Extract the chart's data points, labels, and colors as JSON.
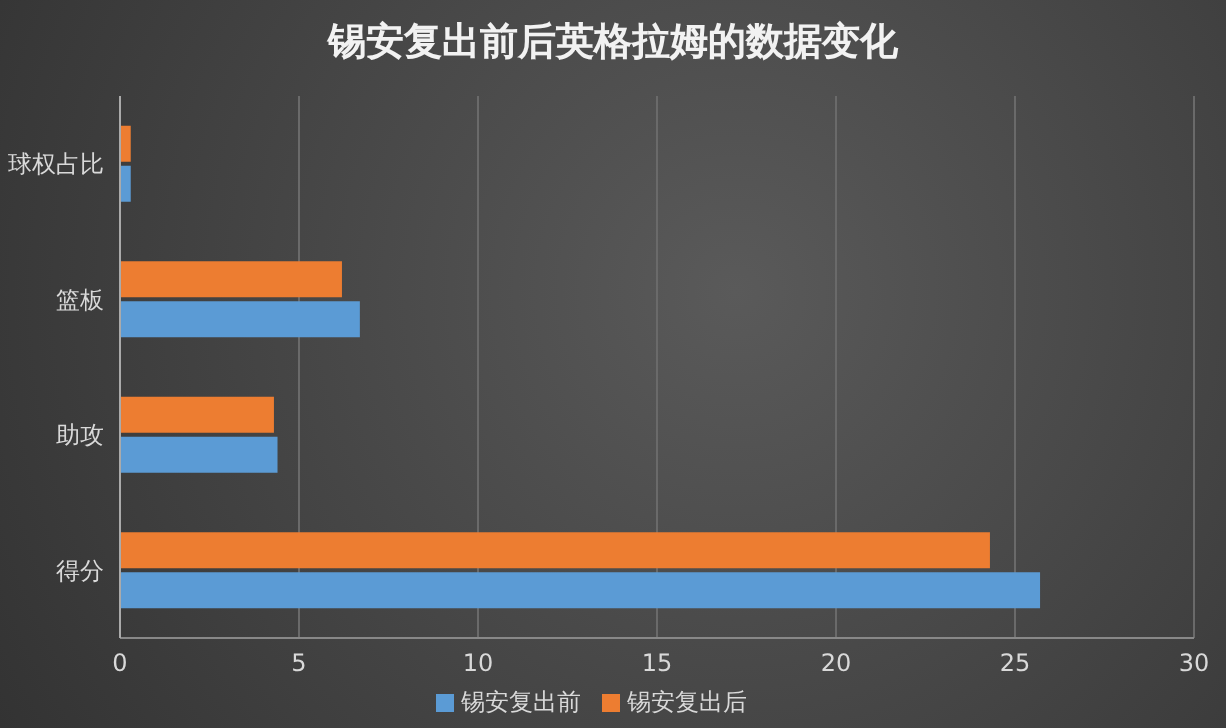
{
  "chart_data": {
    "type": "bar",
    "orientation": "horizontal",
    "title": "锡安复出前后英格拉姆的数据变化",
    "categories": [
      "球权占比",
      "篮板",
      "助攻",
      "得分"
    ],
    "series": [
      {
        "name": "锡安复出后",
        "color": "#ed7d31",
        "values": [
          0.3,
          6.2,
          4.3,
          24.3
        ]
      },
      {
        "name": "锡安复出前",
        "color": "#5b9bd5",
        "values": [
          0.3,
          6.7,
          4.4,
          25.7
        ]
      }
    ],
    "xlim": [
      0,
      30
    ],
    "xticks": [
      0,
      5,
      10,
      15,
      20,
      25,
      30
    ],
    "grid": "x",
    "legend": "bottom"
  }
}
